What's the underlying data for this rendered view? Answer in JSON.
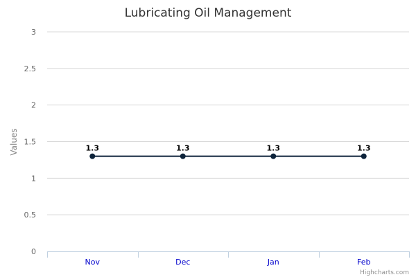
{
  "chart_data": {
    "type": "line",
    "title": "Lubricating Oil Management",
    "xlabel": "",
    "ylabel": "Values",
    "categories": [
      "Nov",
      "Dec",
      "Jan",
      "Feb"
    ],
    "series": [
      {
        "values": [
          1.3,
          1.3,
          1.3,
          1.3
        ]
      }
    ],
    "ylim": [
      0,
      3
    ],
    "yticks": [
      "0",
      "0.5",
      "1",
      "1.5",
      "2",
      "2.5",
      "3"
    ],
    "data_labels": [
      "1.3",
      "1.3",
      "1.3",
      "1.3"
    ],
    "grid": true,
    "legend": "none",
    "colors": {
      "series": "#0d233a",
      "category_labels": "#0000cc"
    }
  },
  "credits": "Highcharts.com"
}
